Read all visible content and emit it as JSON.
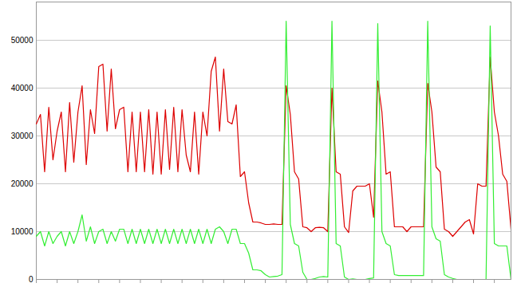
{
  "chart_data": {
    "type": "line",
    "x": [
      0,
      1,
      2,
      3,
      4,
      5,
      6,
      7,
      8,
      9,
      10,
      11,
      12,
      13,
      14,
      15,
      16,
      17,
      18,
      19,
      20,
      21,
      22,
      23,
      24,
      25,
      26,
      27,
      28,
      29,
      30,
      31,
      32,
      33,
      34,
      35,
      36,
      37,
      38,
      39,
      40,
      41,
      42,
      43,
      44,
      45,
      46,
      47,
      48,
      49,
      50,
      51,
      52,
      53,
      54,
      55,
      56,
      57,
      58,
      59,
      60,
      61,
      62,
      63,
      64,
      65,
      66,
      67,
      68,
      69,
      70,
      71,
      72,
      73,
      74,
      75,
      76,
      77,
      78,
      79,
      80,
      81,
      82,
      83,
      84,
      85,
      86,
      87,
      88,
      89,
      90,
      91,
      92,
      93,
      94,
      95,
      96,
      97,
      98,
      99,
      100,
      101,
      102,
      103,
      104,
      105,
      106,
      107,
      108,
      109,
      110,
      111,
      112,
      113,
      114
    ],
    "xlim": [
      0,
      114
    ],
    "xticks": [
      0,
      5,
      10,
      15,
      20,
      25,
      30,
      35,
      40,
      45,
      50,
      55,
      60,
      65,
      70,
      75,
      80,
      85,
      90,
      95,
      100,
      105,
      110
    ],
    "ylim": [
      0,
      58000
    ],
    "yticks": [
      0,
      10000,
      20000,
      30000,
      40000,
      50000
    ],
    "grid": true,
    "tick_labels": "y",
    "series": [
      {
        "color": "#dd0000",
        "values": [
          32500,
          34500,
          22500,
          36000,
          25000,
          31000,
          35000,
          22500,
          37000,
          24500,
          35000,
          40500,
          24000,
          35500,
          30500,
          44500,
          45000,
          31000,
          44000,
          31500,
          35500,
          36000,
          22500,
          35000,
          22500,
          35000,
          22500,
          35500,
          22000,
          35000,
          22000,
          35500,
          23000,
          36000,
          22500,
          35500,
          26000,
          22500,
          35000,
          22000,
          35000,
          30000,
          43500,
          46500,
          31000,
          44000,
          33000,
          32500,
          36500,
          21500,
          22500,
          16000,
          12000,
          12000,
          11800,
          11500,
          11500,
          11600,
          11500,
          11500,
          40500,
          34500,
          22500,
          21000,
          11000,
          10800,
          10000,
          10800,
          10900,
          10800,
          10000,
          40000,
          22500,
          22000,
          11000,
          9800,
          18500,
          19500,
          19500,
          19500,
          20000,
          13000,
          41500,
          35000,
          22000,
          22500,
          11000,
          11000,
          11000,
          10000,
          11000,
          11000,
          11000,
          11000,
          41000,
          35000,
          23500,
          22500,
          10500,
          10000,
          9000,
          10000,
          11000,
          12000,
          12500,
          9500,
          20000,
          19500,
          19500,
          46500,
          35000,
          30000,
          22000,
          20500,
          10500
        ]
      },
      {
        "color": "#33ee33",
        "values": [
          9000,
          10000,
          7000,
          10000,
          7500,
          9000,
          10000,
          7000,
          10000,
          7500,
          10000,
          13500,
          8000,
          11000,
          7500,
          10000,
          10500,
          7500,
          10000,
          8000,
          10500,
          10500,
          7500,
          10500,
          7500,
          10500,
          7500,
          10500,
          7500,
          10500,
          7500,
          10500,
          7500,
          10500,
          7500,
          10500,
          7500,
          10500,
          7500,
          10500,
          7500,
          10500,
          7500,
          10500,
          11000,
          10000,
          7500,
          10500,
          10500,
          7500,
          7500,
          5500,
          2000,
          2000,
          1800,
          1000,
          500,
          600,
          700,
          1000,
          54000,
          11500,
          7500,
          7000,
          1500,
          0,
          0,
          200,
          500,
          600,
          500,
          54000,
          7500,
          7000,
          500,
          0,
          100,
          0,
          0,
          0,
          200,
          300,
          53500,
          10000,
          7500,
          7000,
          1000,
          800,
          800,
          800,
          800,
          800,
          800,
          800,
          54000,
          11000,
          8500,
          8000,
          1000,
          500,
          200,
          0,
          0,
          0,
          0,
          0,
          0,
          0,
          0,
          53000,
          7500,
          7000,
          7000,
          7000,
          0
        ]
      }
    ]
  }
}
